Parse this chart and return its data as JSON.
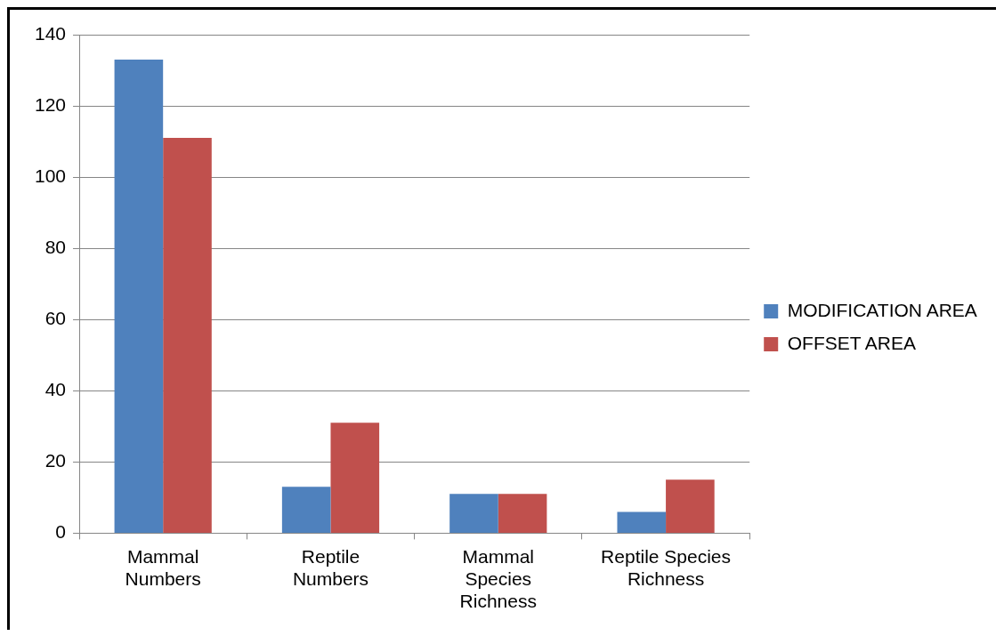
{
  "chart_data": {
    "type": "bar",
    "categories": [
      "Mammal Numbers",
      "Reptile Numbers",
      "Mammal Species Richness",
      "Reptile Species Richness"
    ],
    "series": [
      {
        "name": "MODIFICATION AREA",
        "color": "#4f81bd",
        "values": [
          133,
          13,
          11,
          6
        ]
      },
      {
        "name": "OFFSET AREA",
        "color": "#c0504d",
        "values": [
          111,
          31,
          11,
          15
        ]
      }
    ],
    "ylim": [
      0,
      140
    ],
    "yticks": [
      0,
      20,
      40,
      60,
      80,
      100,
      120,
      140
    ],
    "grid": "y",
    "legend": "right"
  }
}
